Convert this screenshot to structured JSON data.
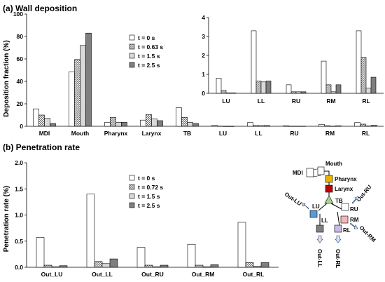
{
  "colors": {
    "series": [
      "#ffffff",
      "url(#pat-checker)",
      "#d9d9d9",
      "#7f7f7f"
    ],
    "pharynx": "#e8b400",
    "larynx": "#c00000",
    "tb": "#a9d18e",
    "lu": "#5b9bd5",
    "ll": "#808080",
    "rm": "#f4b6b6",
    "rl": "#c9b8e8",
    "ru": "#ffffff",
    "arrow": "#dfe7f3"
  },
  "chart_data": [
    {
      "type": "bar",
      "title": "(a) Wall deposition",
      "xlabel": "",
      "ylabel": "Deposition fraction (%)",
      "ylim": [
        0,
        100
      ],
      "yticks": [
        "0",
        "20",
        "40",
        "60",
        "80",
        "100"
      ],
      "categories": [
        "MDI",
        "Mouth",
        "Pharynx",
        "Larynx",
        "TB",
        "LU",
        "LL",
        "RU",
        "RM",
        "RL"
      ],
      "legend_position": "top-center",
      "series": [
        {
          "name": "t = 0 s",
          "values": [
            15.5,
            48.5,
            3.5,
            5.5,
            16.5,
            0.8,
            3.3,
            0.45,
            1.7,
            3.3
          ]
        },
        {
          "name": "t = 0.63 s",
          "values": [
            10,
            59.5,
            8,
            10.5,
            8,
            0.15,
            0.65,
            0.08,
            0.45,
            1.9
          ]
        },
        {
          "name": "t = 1.5 s",
          "values": [
            7,
            72,
            3.5,
            6.5,
            3.5,
            0.02,
            0.6,
            0.08,
            0.08,
            0.28
          ]
        },
        {
          "name": "t = 2.5 s",
          "values": [
            2.5,
            83,
            3.5,
            5,
            2.5,
            0.02,
            0.65,
            0.08,
            0.45,
            0.85
          ]
        }
      ],
      "inset": {
        "categories": [
          "LU",
          "LL",
          "RU",
          "RM",
          "RL"
        ],
        "ylim": [
          0,
          4
        ],
        "yticks": [
          "0",
          "1",
          "2",
          "3",
          "4"
        ]
      }
    },
    {
      "type": "bar",
      "title": "(b) Penetration rate",
      "xlabel": "",
      "ylabel": "Penetration rate (%)",
      "ylim": [
        0,
        2.0
      ],
      "yticks": [
        "0.0",
        "0.5",
        "1.0",
        "1.5",
        "2.0"
      ],
      "categories": [
        "Out_LU",
        "Out_LL",
        "Out_RU",
        "Out_RM",
        "Out_RL"
      ],
      "legend_position": "top-center",
      "series": [
        {
          "name": "t = 0 s",
          "values": [
            0.57,
            1.4,
            0.38,
            0.44,
            0.86
          ]
        },
        {
          "name": "t = 0.72 s",
          "values": [
            0.04,
            0.11,
            0.04,
            0.04,
            0.09
          ]
        },
        {
          "name": "t = 1.5 s",
          "values": [
            0.01,
            0.07,
            0.01,
            0.01,
            0.02
          ]
        },
        {
          "name": "t = 2.5 s",
          "values": [
            0.03,
            0.16,
            0.04,
            0.05,
            0.09
          ]
        }
      ]
    }
  ],
  "diagram": {
    "labels": {
      "mouth": "Mouth",
      "mdi": "MDI",
      "pharynx": "Pharynx",
      "larynx": "Larynx",
      "tb": "TB",
      "lu": "LU",
      "ll": "LL",
      "ru": "RU",
      "rm": "RM",
      "rl": "RL",
      "out_lu": "Out-LU",
      "out_ru": "Out-RU",
      "out_rm": "Out-RM",
      "out_ll": "Out-LL",
      "out_rl": "Out-RL"
    }
  }
}
